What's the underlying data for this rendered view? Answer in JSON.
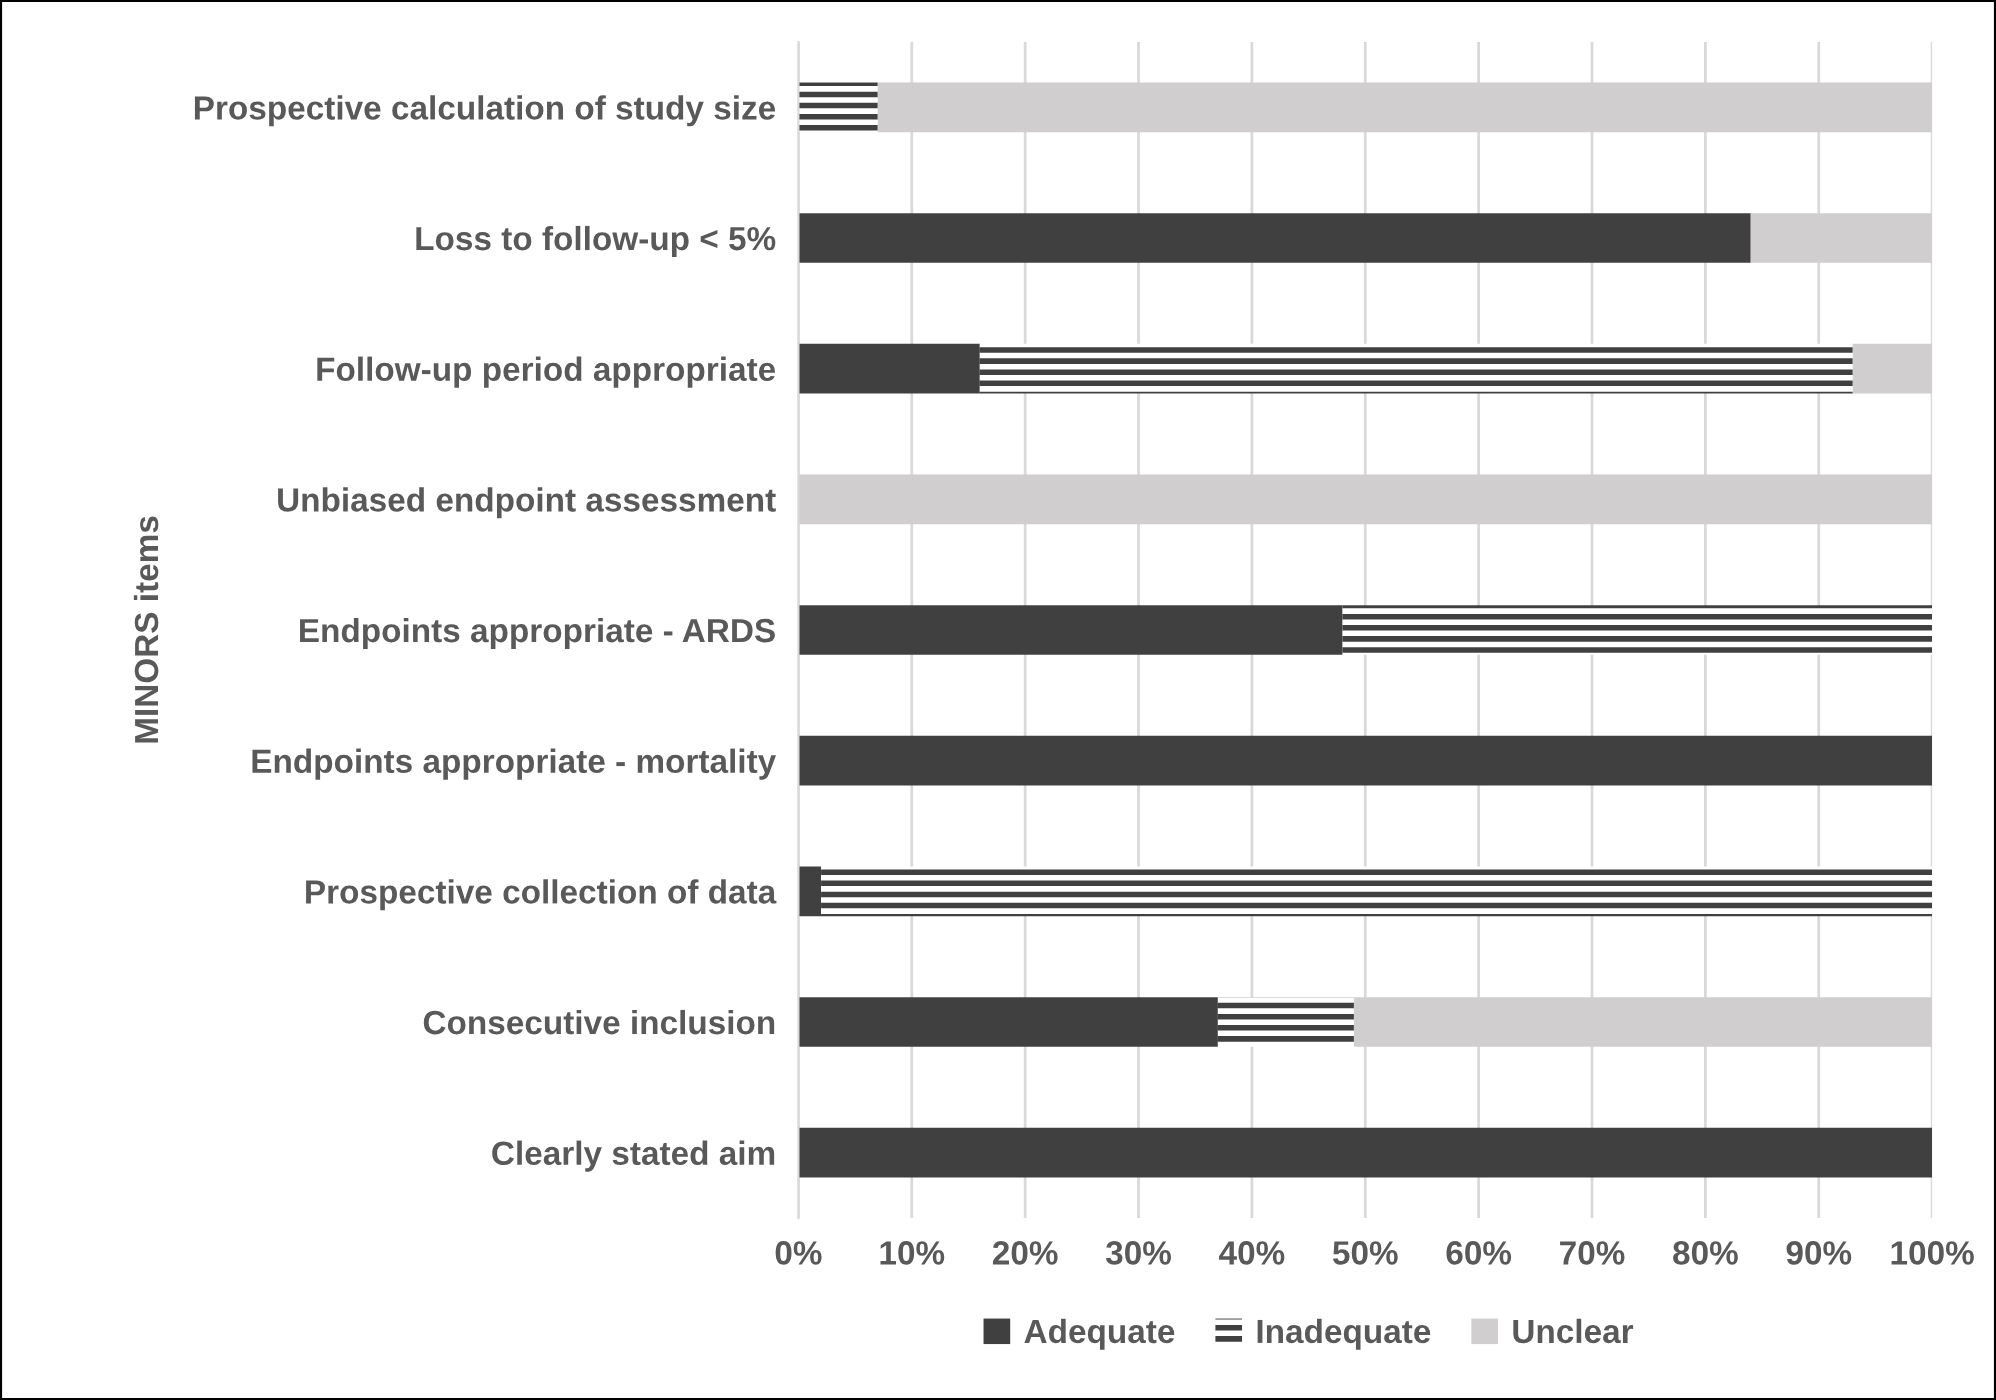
{
  "chart_data": {
    "type": "bar",
    "orientation": "horizontal",
    "stacked": true,
    "ylabel": "MINORS items",
    "categories": [
      "Prospective calculation of study size",
      "Loss to follow-up < 5%",
      "Follow-up period appropriate",
      "Unbiased endpoint assessment",
      "Endpoints appropriate - ARDS",
      "Endpoints appropriate - mortality",
      "Prospective collection of data",
      "Consecutive inclusion",
      "Clearly stated aim"
    ],
    "series": [
      {
        "name": "Adequate",
        "color": "#404040",
        "values": [
          0,
          84,
          16,
          0,
          48,
          100,
          2,
          37,
          100
        ]
      },
      {
        "name": "Inadequate",
        "color": "#404040",
        "values": [
          7,
          0,
          77,
          0,
          52,
          0,
          98,
          12,
          0
        ]
      },
      {
        "name": "Unclear",
        "color": "#d0cece",
        "values": [
          93,
          16,
          7,
          100,
          0,
          0,
          0,
          51,
          0
        ]
      }
    ],
    "xlim": [
      0,
      100
    ],
    "xticks": [
      {
        "value": 0,
        "label": "0%"
      },
      {
        "value": 10,
        "label": "10%"
      },
      {
        "value": 20,
        "label": "20%"
      },
      {
        "value": 30,
        "label": "30%"
      },
      {
        "value": 40,
        "label": "40%"
      },
      {
        "value": 50,
        "label": "50%"
      },
      {
        "value": 60,
        "label": "60%"
      },
      {
        "value": 70,
        "label": "70%"
      },
      {
        "value": 80,
        "label": "80%"
      },
      {
        "value": 90,
        "label": "90%"
      },
      {
        "value": 100,
        "label": "100%"
      }
    ],
    "grid": "x",
    "legend": "bottom"
  }
}
